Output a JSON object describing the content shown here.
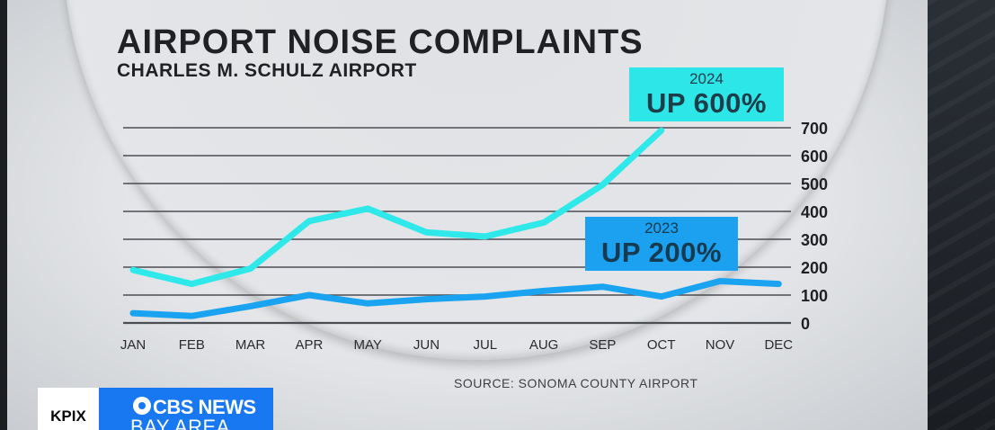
{
  "chart_data": {
    "type": "line",
    "title": "AIRPORT NOISE COMPLAINTS",
    "subtitle": "CHARLES M. SCHULZ AIRPORT",
    "categories": [
      "JAN",
      "FEB",
      "MAR",
      "APR",
      "MAY",
      "JUN",
      "JUL",
      "AUG",
      "SEP",
      "OCT",
      "NOV",
      "DEC"
    ],
    "series": [
      {
        "name": "2024",
        "color": "#2ee8ea",
        "values": [
          190,
          140,
          195,
          365,
          410,
          325,
          310,
          360,
          495,
          690,
          null,
          null
        ]
      },
      {
        "name": "2023",
        "color": "#1aa3f0",
        "values": [
          35,
          25,
          60,
          100,
          70,
          85,
          95,
          115,
          130,
          95,
          150,
          140
        ]
      }
    ],
    "ylim": [
      0,
      700
    ],
    "yticks": [
      "0",
      "100",
      "200",
      "300",
      "400",
      "500",
      "600",
      "700"
    ],
    "grid": true,
    "yaxis_side": "right",
    "annotations": [
      {
        "year": "2024",
        "text": "UP 600%",
        "color": "#2de6e8"
      },
      {
        "year": "2023",
        "text": "UP 200%",
        "color": "#1ba1f0"
      }
    ],
    "source": "SOURCE:  SONOMA COUNTY AIRPORT"
  },
  "broadcast": {
    "station": "KPIX",
    "network": "CBS NEWS",
    "region": "BAY AREA",
    "brand_color": "#1778f2"
  }
}
